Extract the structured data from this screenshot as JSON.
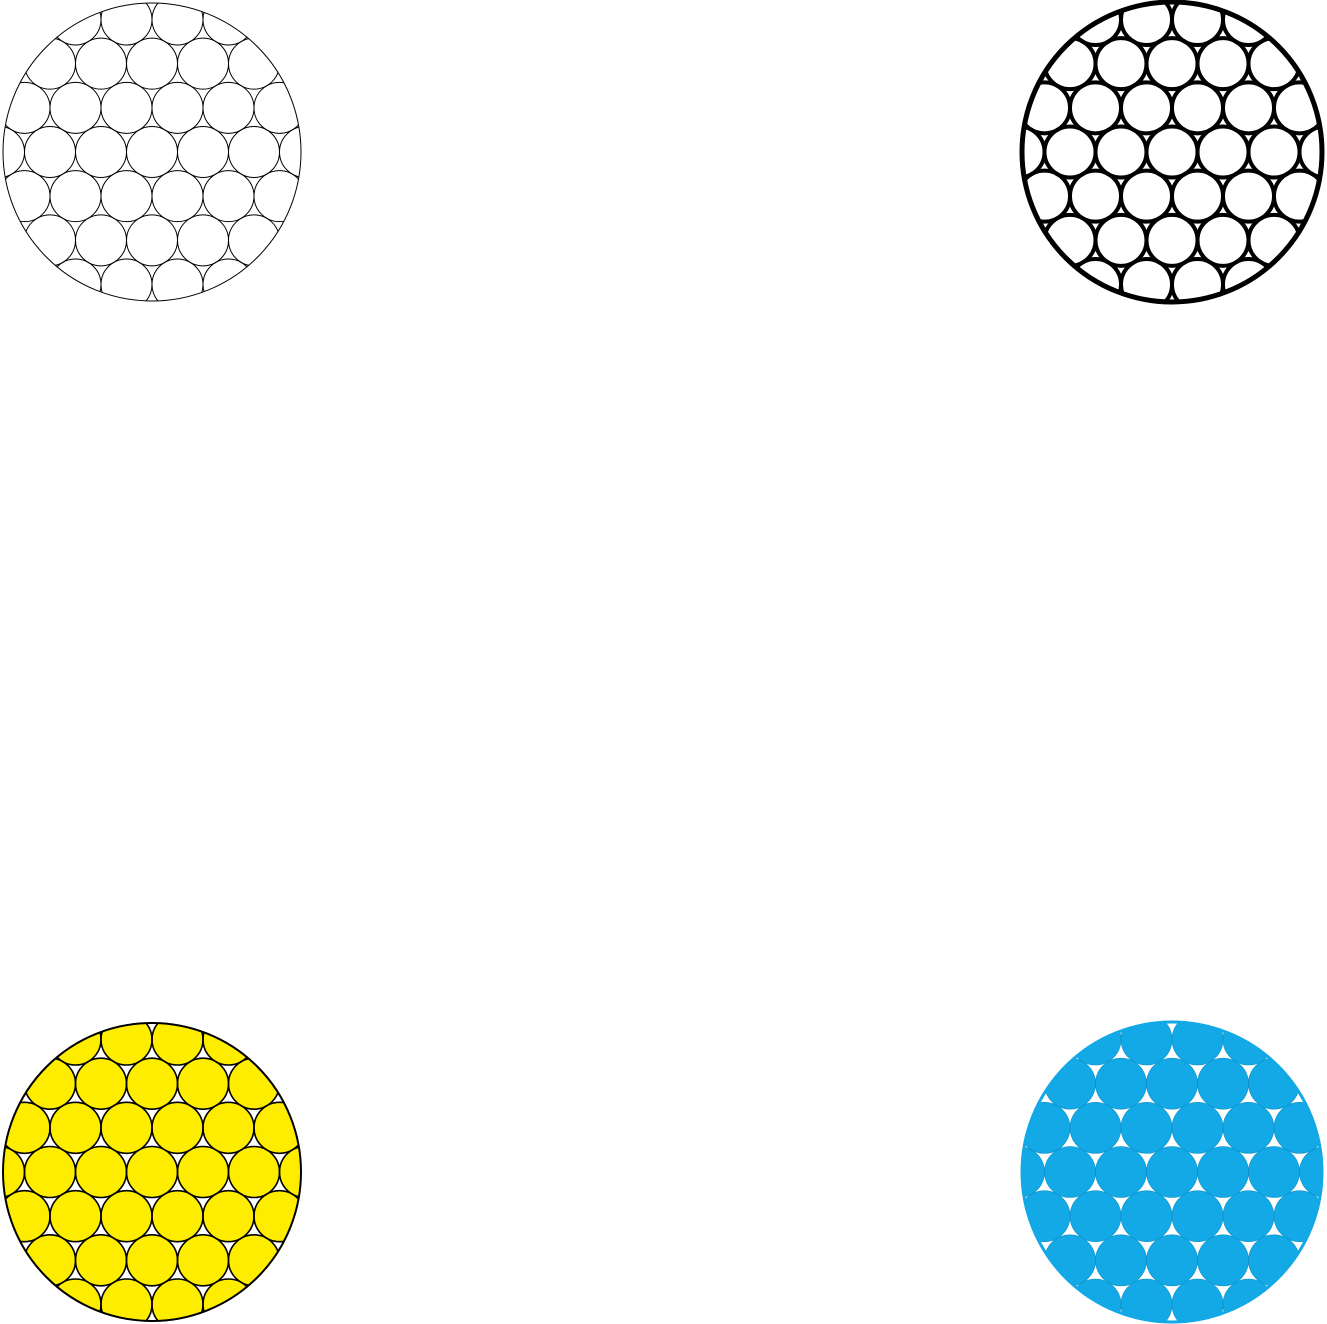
{
  "variants": [
    {
      "id": "outline-thin",
      "label": "",
      "style": "outline-thin",
      "fill": "none",
      "stroke": "#000000",
      "frame_ring": "#000000",
      "icon": "flower-of-life-icon"
    },
    {
      "id": "outline-bold",
      "label": "",
      "style": "outline-bold",
      "fill": "none",
      "stroke": "#000000",
      "frame_ring": "#000000",
      "icon": "flower-of-life-icon"
    },
    {
      "id": "filled-yellow",
      "label": "",
      "style": "filled",
      "fill": "#ffed00",
      "stroke": "#000000",
      "frame_ring": "#000000",
      "icon": "flower-of-life-icon"
    },
    {
      "id": "silhouette-blue",
      "label": "",
      "style": "silhouette",
      "fill": "#13a8e6",
      "stroke": "#0d8fc5",
      "frame_ring": "#13a8e6",
      "icon": "flower-of-life-icon"
    }
  ],
  "pattern": {
    "name": "",
    "petal_rings": 3,
    "circle_count": 37
  }
}
